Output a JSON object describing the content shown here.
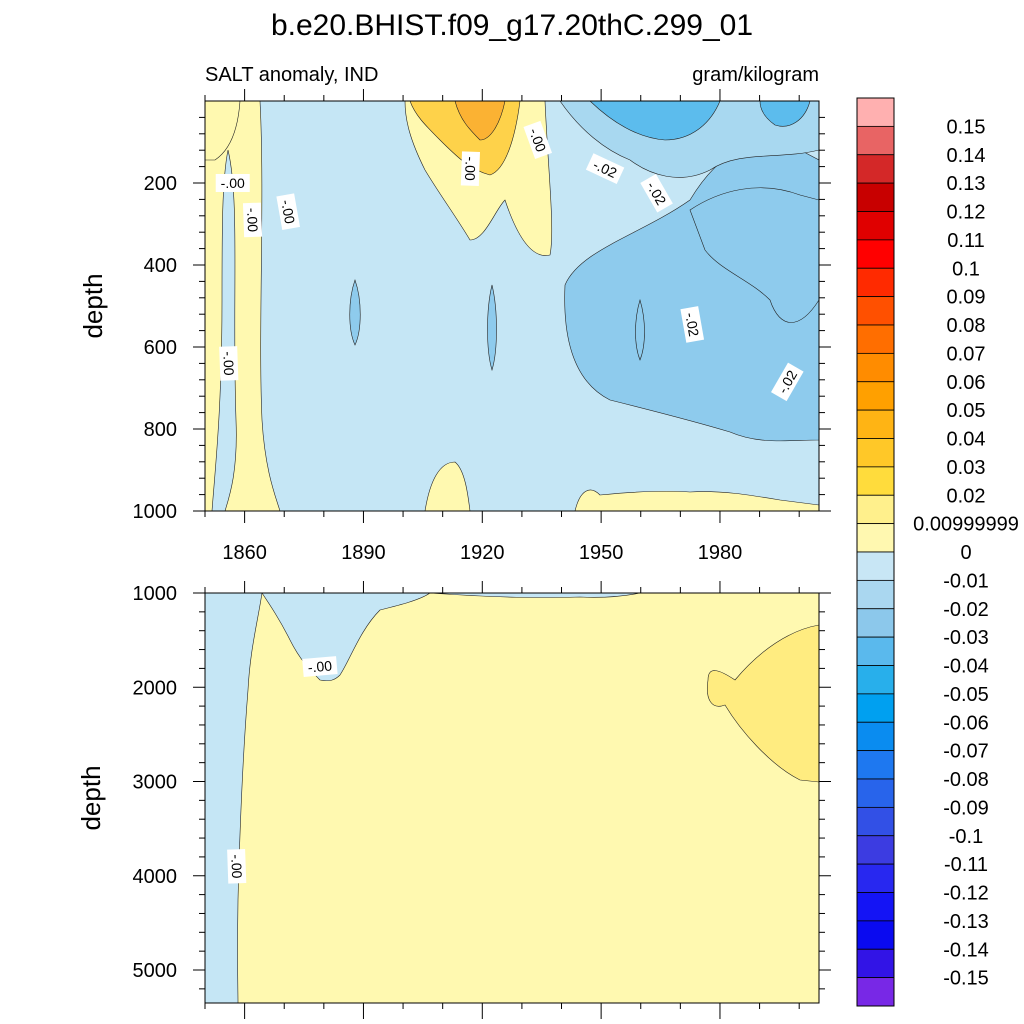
{
  "title": "b.e20.BHIST.f09_g17.20thC.299_01",
  "subtitle_left": "SALT anomaly, IND",
  "subtitle_right": "gram/kilogram",
  "chart_data": [
    {
      "type": "heatmap",
      "panel": "upper",
      "ylabel": "depth",
      "xlim": [
        1850,
        2005
      ],
      "ylim": [
        0,
        1000
      ],
      "y_reversed": true,
      "x_ticks": [
        1860,
        1890,
        1920,
        1950,
        1980
      ],
      "y_ticks": [
        200,
        400,
        600,
        800,
        1000
      ],
      "contour_labels": [
        {
          "text": "-.00",
          "x": 1857,
          "y": 200
        },
        {
          "text": "-.00",
          "x": 1862,
          "y": 290
        },
        {
          "text": "-.00",
          "x": 1871,
          "y": 270
        },
        {
          "text": "-.00",
          "x": 1856,
          "y": 640
        },
        {
          "text": "-.00",
          "x": 1917,
          "y": 165
        },
        {
          "text": "-.00",
          "x": 1934,
          "y": 95
        },
        {
          "text": "-.02",
          "x": 1951,
          "y": 165
        },
        {
          "text": "-.02",
          "x": 1964,
          "y": 225
        },
        {
          "text": "-.02",
          "x": 1973,
          "y": 545
        },
        {
          "text": "-.02",
          "x": 1997,
          "y": 685
        }
      ]
    },
    {
      "type": "heatmap",
      "panel": "lower",
      "ylabel": "depth",
      "xlim": [
        1850,
        2005
      ],
      "ylim": [
        1000,
        5350
      ],
      "y_reversed": true,
      "y_ticks": [
        1000,
        2000,
        3000,
        4000,
        5000
      ],
      "contour_labels": [
        {
          "text": "-.00",
          "x": 1879,
          "y": 1780
        },
        {
          "text": "-.00",
          "x": 1858,
          "y": 3900
        }
      ]
    }
  ],
  "colorbar": {
    "labels": [
      "0.15",
      "0.14",
      "0.13",
      "0.12",
      "0.11",
      "0.1",
      "0.09",
      "0.08",
      "0.07",
      "0.06",
      "0.05",
      "0.04",
      "0.03",
      "0.02",
      "0.00999999",
      "0",
      "-0.01",
      "-0.02",
      "-0.03",
      "-0.04",
      "-0.05",
      "-0.06",
      "-0.07",
      "-0.08",
      "-0.09",
      "-0.1",
      "-0.11",
      "-0.12",
      "-0.13",
      "-0.14",
      "-0.15"
    ],
    "colors": [
      "#ffb0b0",
      "#e86464",
      "#d42828",
      "#c80000",
      "#e00000",
      "#ff0000",
      "#ff2a00",
      "#ff5000",
      "#ff6e00",
      "#ff8c00",
      "#ffa000",
      "#ffb414",
      "#ffc828",
      "#ffdc3c",
      "#fff08c",
      "#fff8b0",
      "#c8e6f5",
      "#aad7f0",
      "#8cc8eb",
      "#5ab9ed",
      "#28afeb",
      "#00a0f0",
      "#0a8cf0",
      "#1e78f0",
      "#2864eb",
      "#3250e6",
      "#3c3ce1",
      "#2828f0",
      "#1414f5",
      "#0a0af0",
      "#3214e6",
      "#7828e6"
    ]
  },
  "palette": {
    "neutral_pos": "#fff9b0",
    "neutral_neg": "#c5e6f5",
    "light_blue": "#a8d8f0",
    "mid_blue": "#8ecbed",
    "blue": "#5cbced",
    "deep_blue": "#2aa8e8",
    "yellow": "#ffec80",
    "orange_yellow": "#fed24a",
    "orange": "#fbb233"
  }
}
